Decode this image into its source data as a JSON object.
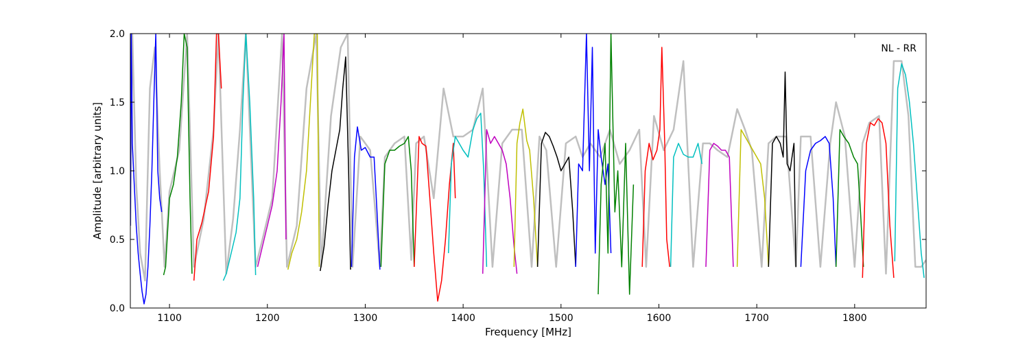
{
  "chart_data": {
    "type": "line",
    "title": "",
    "annotation": "NL - RR",
    "xlabel": "Frequency [MHz]",
    "ylabel": "Amplitude [arbitrary units]",
    "xlim": [
      1060,
      1873
    ],
    "ylim": [
      0.0,
      2.0
    ],
    "x_ticks": [
      1100,
      1200,
      1300,
      1400,
      1500,
      1600,
      1700,
      1800
    ],
    "y_ticks": [
      0.0,
      0.5,
      1.0,
      1.5,
      2.0
    ],
    "x_tick_labels": [
      "1100",
      "1200",
      "1300",
      "1400",
      "1500",
      "1600",
      "1700",
      "1800"
    ],
    "y_tick_labels": [
      "0.0",
      "0.5",
      "1.0",
      "1.5",
      "2.0"
    ],
    "grid": false,
    "background_trace": {
      "color": "#bfbfbf",
      "x": [
        1060,
        1062,
        1066,
        1070,
        1075,
        1080,
        1085,
        1090,
        1095,
        1100,
        1110,
        1118,
        1125,
        1135,
        1145,
        1150,
        1158,
        1165,
        1172,
        1178,
        1188,
        1195,
        1205,
        1215,
        1220,
        1230,
        1240,
        1250,
        1255,
        1265,
        1275,
        1282,
        1287,
        1295,
        1305,
        1315,
        1320,
        1330,
        1340,
        1347,
        1352,
        1360,
        1370,
        1380,
        1390,
        1400,
        1410,
        1420,
        1430,
        1440,
        1450,
        1460,
        1470,
        1478,
        1485,
        1495,
        1505,
        1515,
        1522,
        1530,
        1540,
        1550,
        1560,
        1570,
        1580,
        1587,
        1595,
        1605,
        1615,
        1625,
        1635,
        1645,
        1652,
        1660,
        1670,
        1680,
        1688,
        1695,
        1705,
        1712,
        1720,
        1730,
        1740,
        1745,
        1755,
        1765,
        1775,
        1781,
        1790,
        1800,
        1808,
        1815,
        1825,
        1832,
        1840,
        1848,
        1855,
        1862,
        1868,
        1873
      ],
      "y": [
        0.6,
        2.0,
        0.9,
        0.4,
        0.2,
        1.6,
        1.9,
        1.0,
        0.3,
        0.85,
        1.15,
        2.0,
        0.3,
        0.65,
        1.3,
        2.0,
        0.25,
        0.65,
        1.3,
        2.0,
        0.3,
        0.5,
        0.8,
        2.0,
        0.3,
        0.6,
        1.6,
        2.0,
        0.3,
        1.4,
        1.9,
        2.0,
        0.3,
        1.25,
        1.15,
        0.3,
        1.1,
        1.2,
        1.25,
        0.35,
        1.2,
        1.25,
        0.8,
        1.6,
        1.25,
        1.25,
        1.3,
        1.6,
        0.3,
        1.2,
        1.3,
        1.3,
        0.3,
        1.25,
        1.15,
        0.3,
        1.2,
        1.25,
        1.1,
        1.2,
        1.1,
        1.3,
        1.05,
        1.15,
        1.3,
        0.3,
        1.4,
        1.15,
        1.3,
        1.8,
        0.3,
        1.2,
        1.2,
        1.15,
        1.1,
        1.45,
        1.3,
        1.15,
        0.3,
        1.2,
        1.25,
        1.25,
        0.3,
        1.25,
        1.25,
        0.3,
        1.2,
        1.5,
        1.25,
        0.3,
        1.2,
        1.35,
        1.4,
        0.25,
        1.8,
        1.8,
        1.4,
        0.3,
        0.3,
        0.35
      ]
    },
    "series": [
      {
        "color": "#0000ff",
        "x": [
          1060,
          1061,
          1062,
          1064,
          1066,
          1068,
          1070,
          1072,
          1074,
          1076,
          1078,
          1080,
          1082,
          1084,
          1086,
          1088,
          1090,
          1092
        ],
        "y": [
          0.6,
          2.0,
          1.2,
          0.9,
          0.6,
          0.4,
          0.25,
          0.12,
          0.03,
          0.1,
          0.3,
          0.6,
          1.0,
          1.5,
          2.0,
          1.0,
          0.8,
          0.7
        ]
      },
      {
        "color": "#008000",
        "x": [
          1094,
          1096,
          1100,
          1104,
          1108,
          1112,
          1115,
          1118,
          1121,
          1123
        ],
        "y": [
          0.24,
          0.3,
          0.8,
          0.9,
          1.1,
          1.5,
          2.0,
          1.9,
          0.8,
          0.25
        ]
      },
      {
        "color": "#ff0000",
        "x": [
          1125,
          1128,
          1133,
          1140,
          1145,
          1148,
          1150,
          1153
        ],
        "y": [
          0.2,
          0.5,
          0.62,
          0.85,
          1.25,
          2.0,
          2.0,
          1.6
        ]
      },
      {
        "color": "#00bfbf",
        "x": [
          1155,
          1158,
          1163,
          1168,
          1172,
          1175,
          1178,
          1182,
          1186,
          1188
        ],
        "y": [
          0.2,
          0.25,
          0.4,
          0.55,
          0.8,
          1.5,
          2.0,
          1.5,
          0.8,
          0.24
        ]
      },
      {
        "color": "#bf00bf",
        "x": [
          1190,
          1195,
          1200,
          1205,
          1210,
          1214,
          1217,
          1219
        ],
        "y": [
          0.3,
          0.45,
          0.6,
          0.75,
          1.0,
          1.5,
          2.0,
          0.5
        ]
      },
      {
        "color": "#bfbf00",
        "x": [
          1221,
          1225,
          1230,
          1235,
          1240,
          1244,
          1248,
          1251,
          1253
        ],
        "y": [
          0.28,
          0.4,
          0.5,
          0.7,
          1.0,
          1.5,
          2.0,
          2.0,
          0.3
        ]
      },
      {
        "color": "#000000",
        "x": [
          1254,
          1258,
          1262,
          1266,
          1270,
          1274,
          1277,
          1280,
          1283,
          1285
        ],
        "y": [
          0.27,
          0.45,
          0.75,
          1.0,
          1.15,
          1.3,
          1.6,
          1.83,
          1.0,
          0.28
        ]
      },
      {
        "color": "#0000ff",
        "x": [
          1286,
          1289,
          1292,
          1296,
          1300,
          1305,
          1309,
          1312,
          1315
        ],
        "y": [
          0.3,
          1.1,
          1.32,
          1.15,
          1.17,
          1.1,
          1.1,
          0.7,
          0.28
        ]
      },
      {
        "color": "#008000",
        "x": [
          1316,
          1320,
          1325,
          1330,
          1335,
          1340,
          1344,
          1347,
          1350
        ],
        "y": [
          0.3,
          1.05,
          1.15,
          1.15,
          1.18,
          1.2,
          1.25,
          1.0,
          0.3
        ]
      },
      {
        "color": "#ff0000",
        "x": [
          1350,
          1355,
          1358,
          1362,
          1366,
          1370,
          1374,
          1378,
          1382,
          1386,
          1390,
          1392
        ],
        "y": [
          0.3,
          1.25,
          1.2,
          1.18,
          0.8,
          0.4,
          0.05,
          0.2,
          0.5,
          0.9,
          1.2,
          0.8
        ]
      },
      {
        "color": "#00bfbf",
        "x": [
          1385,
          1388,
          1392,
          1396,
          1400,
          1405,
          1410,
          1414,
          1418,
          1421,
          1424
        ],
        "y": [
          0.4,
          1.05,
          1.25,
          1.2,
          1.15,
          1.1,
          1.3,
          1.38,
          1.42,
          1.0,
          0.3
        ]
      },
      {
        "color": "#bf00bf",
        "x": [
          1420,
          1424,
          1428,
          1432,
          1436,
          1440,
          1444,
          1448,
          1452,
          1455
        ],
        "y": [
          0.25,
          1.3,
          1.2,
          1.25,
          1.2,
          1.15,
          1.05,
          0.8,
          0.45,
          0.25
        ]
      },
      {
        "color": "#bfbf00",
        "x": [
          1452,
          1455,
          1458,
          1461,
          1465,
          1468,
          1472,
          1476
        ],
        "y": [
          0.3,
          1.2,
          1.35,
          1.45,
          1.22,
          1.15,
          0.8,
          0.3
        ]
      },
      {
        "color": "#000000",
        "x": [
          1476,
          1480,
          1484,
          1488,
          1492,
          1496,
          1500,
          1504,
          1508,
          1512,
          1515
        ],
        "y": [
          0.3,
          1.2,
          1.28,
          1.25,
          1.18,
          1.1,
          1.0,
          1.05,
          1.1,
          0.7,
          0.3
        ]
      },
      {
        "color": "#0000ff",
        "x": [
          1515,
          1518,
          1522,
          1526,
          1529,
          1532,
          1535,
          1538,
          1541,
          1545,
          1548,
          1551
        ],
        "y": [
          0.3,
          1.05,
          1.0,
          2.0,
          1.0,
          1.9,
          0.4,
          1.3,
          1.1,
          0.9,
          1.05,
          0.4
        ]
      },
      {
        "color": "#008000",
        "x": [
          1538,
          1541,
          1545,
          1548,
          1551,
          1555,
          1558,
          1562,
          1566,
          1570,
          1574
        ],
        "y": [
          0.1,
          0.9,
          1.2,
          0.4,
          2.0,
          0.7,
          1.0,
          0.3,
          1.2,
          0.1,
          0.9
        ]
      },
      {
        "color": "#ff0000",
        "x": [
          1583,
          1586,
          1590,
          1594,
          1598,
          1601,
          1603,
          1606,
          1608,
          1611
        ],
        "y": [
          0.3,
          1.0,
          1.2,
          1.08,
          1.15,
          1.3,
          1.9,
          1.2,
          0.5,
          0.3
        ]
      },
      {
        "color": "#00bfbf",
        "x": [
          1612,
          1615,
          1620,
          1625,
          1630,
          1635,
          1640,
          1644
        ],
        "y": [
          0.3,
          1.1,
          1.2,
          1.12,
          1.1,
          1.1,
          1.2,
          1.05
        ]
      },
      {
        "color": "#bf00bf",
        "x": [
          1648,
          1652,
          1656,
          1660,
          1664,
          1668,
          1672,
          1676
        ],
        "y": [
          0.3,
          1.15,
          1.2,
          1.18,
          1.15,
          1.15,
          1.1,
          0.3
        ]
      },
      {
        "color": "#bfbf00",
        "x": [
          1680,
          1684,
          1688,
          1692,
          1696,
          1700,
          1704,
          1708,
          1712
        ],
        "y": [
          0.3,
          1.3,
          1.25,
          1.2,
          1.15,
          1.1,
          1.05,
          0.8,
          0.3
        ]
      },
      {
        "color": "#000000",
        "x": [
          1712,
          1716,
          1720,
          1724,
          1727,
          1729,
          1731,
          1734,
          1738,
          1740
        ],
        "y": [
          0.3,
          1.2,
          1.25,
          1.2,
          1.1,
          1.72,
          1.05,
          1.0,
          1.2,
          0.3
        ]
      },
      {
        "color": "#0000ff",
        "x": [
          1745,
          1750,
          1755,
          1760,
          1765,
          1770,
          1774,
          1778,
          1781
        ],
        "y": [
          0.3,
          1.0,
          1.15,
          1.2,
          1.22,
          1.25,
          1.2,
          0.8,
          0.3
        ]
      },
      {
        "color": "#008000",
        "x": [
          1781,
          1785,
          1789,
          1794,
          1799,
          1803,
          1806,
          1809
        ],
        "y": [
          0.3,
          1.3,
          1.25,
          1.2,
          1.1,
          1.05,
          0.7,
          0.3
        ]
      },
      {
        "color": "#ff0000",
        "x": [
          1808,
          1812,
          1816,
          1820,
          1824,
          1828,
          1832,
          1836,
          1840
        ],
        "y": [
          0.22,
          1.2,
          1.35,
          1.33,
          1.38,
          1.35,
          1.2,
          0.6,
          0.22
        ]
      },
      {
        "color": "#00bfbf",
        "x": [
          1841,
          1844,
          1848,
          1852,
          1856,
          1860,
          1864,
          1868,
          1871
        ],
        "y": [
          0.34,
          1.6,
          1.78,
          1.7,
          1.5,
          1.2,
          0.8,
          0.4,
          0.22
        ]
      }
    ]
  }
}
